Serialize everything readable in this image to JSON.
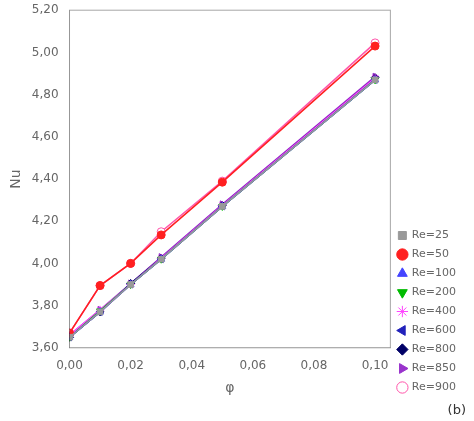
{
  "chart_data": {
    "type": "line",
    "x": [
      0.0,
      0.01,
      0.02,
      0.03,
      0.05,
      0.1
    ],
    "series": [
      {
        "name": "Re=25",
        "color": "#999999",
        "marker": "square",
        "values": [
          3.65,
          3.77,
          3.9,
          4.02,
          4.27,
          4.87
        ]
      },
      {
        "name": "Re=50",
        "color": "#ff2020",
        "marker": "circle",
        "values": [
          3.67,
          3.895,
          4.0,
          4.135,
          4.385,
          5.03
        ]
      },
      {
        "name": "Re=100",
        "color": "#4444ff",
        "marker": "triangle-up",
        "values": [
          3.65,
          3.77,
          3.9,
          4.02,
          4.27,
          4.87
        ]
      },
      {
        "name": "Re=200",
        "color": "#00bb00",
        "marker": "triangle-down",
        "values": [
          3.65,
          3.775,
          3.9,
          4.02,
          4.27,
          4.87
        ]
      },
      {
        "name": "Re=400",
        "color": "#ff44ff",
        "marker": "star",
        "values": [
          3.66,
          3.78,
          3.9,
          4.025,
          4.275,
          4.88
        ]
      },
      {
        "name": "Re=600",
        "color": "#2222bb",
        "marker": "triangle-left",
        "values": [
          3.65,
          3.77,
          3.9,
          4.02,
          4.27,
          4.87
        ]
      },
      {
        "name": "Re=800",
        "color": "#000066",
        "marker": "diamond",
        "values": [
          3.65,
          3.77,
          3.905,
          4.025,
          4.275,
          4.88
        ]
      },
      {
        "name": "Re=850",
        "color": "#9933cc",
        "marker": "triangle-right",
        "values": [
          3.66,
          3.78,
          3.905,
          4.03,
          4.28,
          4.885
        ]
      },
      {
        "name": "Re=900",
        "color": "#ff55aa",
        "marker": "open-circle",
        "values": [
          3.67,
          3.895,
          4.0,
          4.15,
          4.39,
          5.045
        ]
      }
    ],
    "xlabel": "φ",
    "ylabel": "Nu",
    "xlim": [
      0.0,
      0.105
    ],
    "ylim": [
      3.6,
      5.2
    ],
    "xticks": [
      {
        "value": 0.0,
        "label": "0,00"
      },
      {
        "value": 0.02,
        "label": "0,02"
      },
      {
        "value": 0.04,
        "label": "0,04"
      },
      {
        "value": 0.06,
        "label": "0,06"
      },
      {
        "value": 0.08,
        "label": "0,08"
      },
      {
        "value": 0.1,
        "label": "0,10"
      }
    ],
    "yticks": [
      {
        "value": 3.6,
        "label": "3,60"
      },
      {
        "value": 3.8,
        "label": "3,80"
      },
      {
        "value": 4.0,
        "label": "4,00"
      },
      {
        "value": 4.2,
        "label": "4,20"
      },
      {
        "value": 4.4,
        "label": "4,40"
      },
      {
        "value": 4.6,
        "label": "4,60"
      },
      {
        "value": 4.8,
        "label": "4,80"
      },
      {
        "value": 5.0,
        "label": "5,00"
      },
      {
        "value": 5.2,
        "label": "5,20"
      }
    ],
    "legend": "lower right",
    "grid": false,
    "annotation": "(b)"
  }
}
